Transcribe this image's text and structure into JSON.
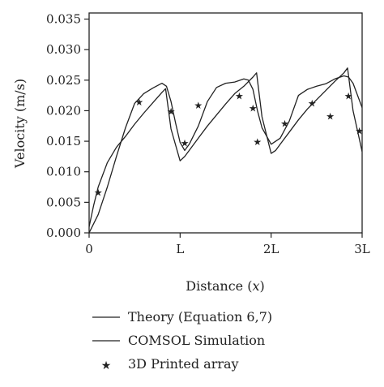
{
  "chart_data": {
    "type": "line",
    "xlabel_prefix": "Distance (",
    "xlabel_var": "x",
    "xlabel_suffix": ")",
    "ylabel": "Velocity (m/s)",
    "xlim": [
      0,
      3
    ],
    "ylim": [
      0,
      0.036
    ],
    "x_ticks": [
      {
        "value": 0,
        "label": "0"
      },
      {
        "value": 1,
        "label": "L"
      },
      {
        "value": 2,
        "label": "2L"
      },
      {
        "value": 3,
        "label": "3L"
      }
    ],
    "y_ticks": [
      {
        "value": 0.0,
        "label": "0.000"
      },
      {
        "value": 0.005,
        "label": "0.005"
      },
      {
        "value": 0.01,
        "label": "0.010"
      },
      {
        "value": 0.015,
        "label": "0.015"
      },
      {
        "value": 0.02,
        "label": "0.020"
      },
      {
        "value": 0.025,
        "label": "0.025"
      },
      {
        "value": 0.03,
        "label": "0.030"
      },
      {
        "value": 0.035,
        "label": "0.035"
      }
    ],
    "grid": false,
    "legend_position": "bottom",
    "series": [
      {
        "name": "Theory (Equation 6,7)",
        "style": "line",
        "x": [
          0,
          0.05,
          0.1,
          0.2,
          0.3,
          0.4,
          0.5,
          0.6,
          0.7,
          0.8,
          0.84,
          0.9,
          1.0,
          1.05,
          1.1,
          1.2,
          1.3,
          1.4,
          1.5,
          1.6,
          1.7,
          1.8,
          1.84,
          1.9,
          2.0,
          2.05,
          2.1,
          2.2,
          2.3,
          2.4,
          2.5,
          2.6,
          2.7,
          2.8,
          2.84,
          2.9,
          3.0
        ],
        "y": [
          0.001,
          0.0045,
          0.0075,
          0.0115,
          0.014,
          0.0158,
          0.0178,
          0.0196,
          0.0213,
          0.023,
          0.0236,
          0.017,
          0.0118,
          0.0125,
          0.0135,
          0.0155,
          0.0175,
          0.0193,
          0.0211,
          0.0228,
          0.024,
          0.0255,
          0.0262,
          0.019,
          0.013,
          0.0135,
          0.0145,
          0.0165,
          0.0185,
          0.0203,
          0.0218,
          0.0233,
          0.0248,
          0.0262,
          0.027,
          0.02,
          0.0133
        ]
      },
      {
        "name": "COMSOL Simulation",
        "style": "line",
        "x": [
          0,
          0.1,
          0.2,
          0.3,
          0.4,
          0.5,
          0.55,
          0.6,
          0.7,
          0.8,
          0.85,
          0.9,
          0.95,
          1.0,
          1.05,
          1.1,
          1.2,
          1.3,
          1.4,
          1.5,
          1.6,
          1.7,
          1.75,
          1.8,
          1.85,
          1.9,
          2.0,
          2.1,
          2.2,
          2.3,
          2.4,
          2.5,
          2.6,
          2.7,
          2.8,
          2.85,
          2.9,
          3.0
        ],
        "y": [
          0.0,
          0.003,
          0.0075,
          0.0125,
          0.0172,
          0.0212,
          0.022,
          0.0228,
          0.0237,
          0.0245,
          0.024,
          0.0215,
          0.018,
          0.0148,
          0.0135,
          0.0145,
          0.0175,
          0.0215,
          0.0238,
          0.0245,
          0.0247,
          0.0252,
          0.025,
          0.0235,
          0.02,
          0.0172,
          0.0145,
          0.0155,
          0.0183,
          0.0225,
          0.0235,
          0.024,
          0.0244,
          0.0252,
          0.0257,
          0.0255,
          0.0245,
          0.0205
        ]
      },
      {
        "name": "3D Printed array",
        "style": "marker",
        "x": [
          0.1,
          0.55,
          0.9,
          1.05,
          1.2,
          1.65,
          1.8,
          1.85,
          2.15,
          2.45,
          2.65,
          2.85,
          2.97
        ],
        "y": [
          0.0067,
          0.0215,
          0.02,
          0.0148,
          0.021,
          0.0225,
          0.0205,
          0.015,
          0.018,
          0.0213,
          0.0192,
          0.0225,
          0.0168
        ]
      }
    ]
  }
}
